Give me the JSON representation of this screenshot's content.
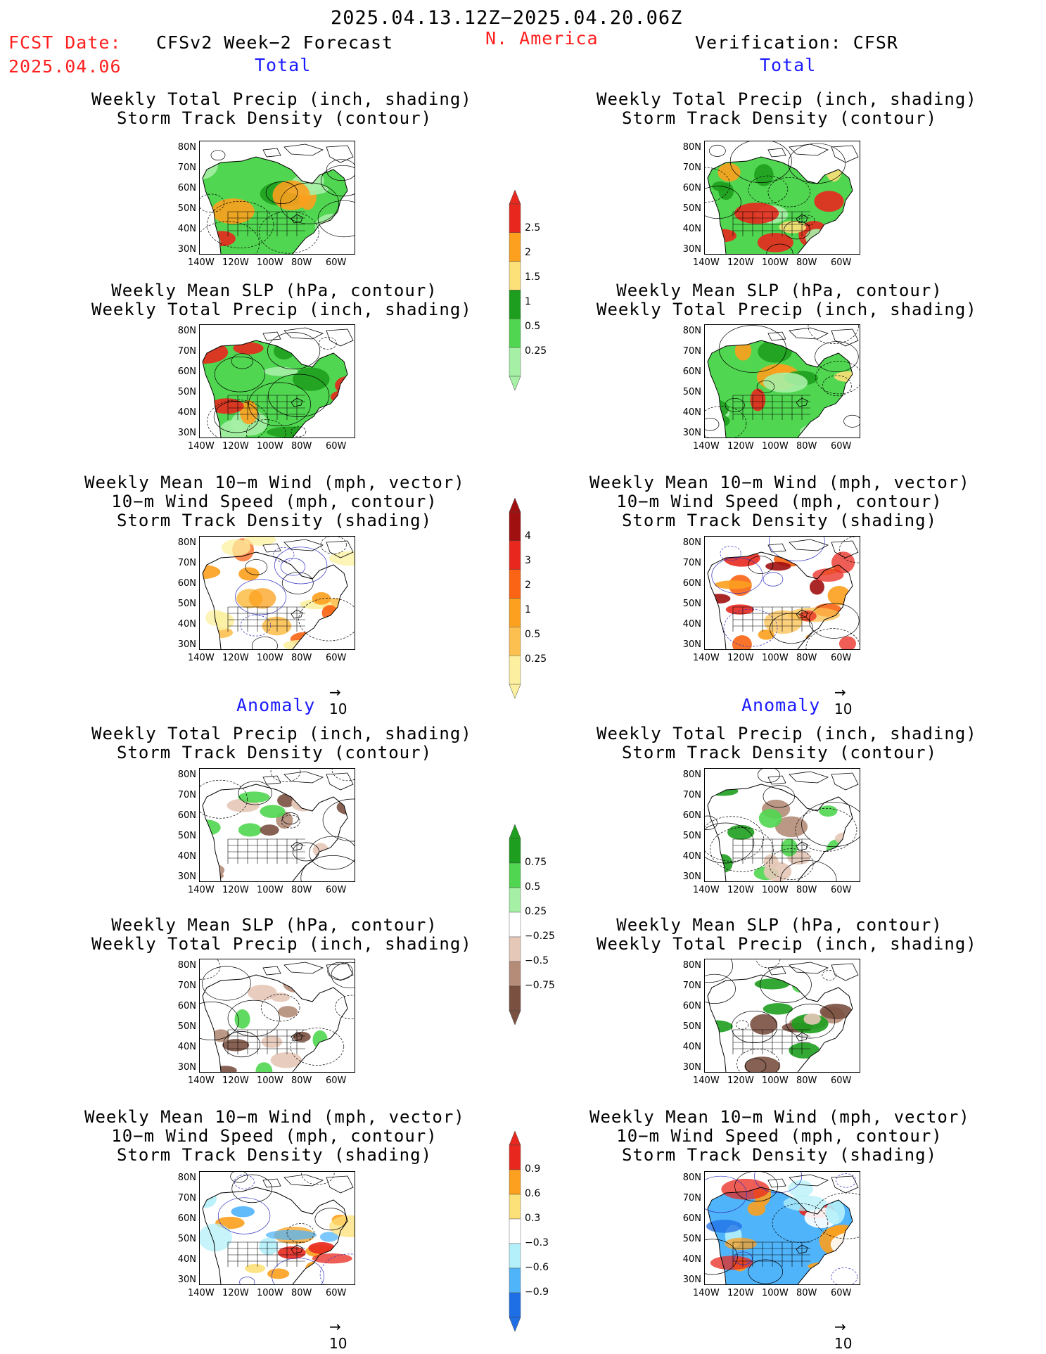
{
  "header": {
    "date_range": "2025.04.13.12Z−2025.04.20.06Z",
    "fcst_label": "FCST Date:",
    "fcst_date": "2025.04.06",
    "model": "CFSv2 Week−2 Forecast",
    "region": "N. America",
    "verification": "Verification: CFSR"
  },
  "sections": {
    "total": "Total",
    "anomaly": "Anomaly"
  },
  "titles": {
    "precip_storm": "Weekly Total Precip (inch, shading)\nStorm Track Density (contour)",
    "slp_precip": "Weekly Mean SLP (hPa, contour)\nWeekly Total Precip (inch, shading)",
    "wind": "Weekly Mean 10−m Wind (mph, vector)\n10−m Wind Speed (mph, contour)\nStorm Track Density (shading)"
  },
  "axes": {
    "lat": [
      "80N",
      "70N",
      "60N",
      "50N",
      "40N",
      "30N"
    ],
    "lon": [
      "140W",
      "120W",
      "100W",
      "80W",
      "60W"
    ]
  },
  "vector_ref": "10",
  "colorbars": {
    "precip_total": {
      "labels": [
        "2.5",
        "2",
        "1.5",
        "1",
        "0.5",
        "0.25"
      ],
      "colors": [
        "#e8281e",
        "#fca01e",
        "#fce078",
        "#1e9e1e",
        "#50d650",
        "#a6f0a6"
      ]
    },
    "storm_total": {
      "labels": [
        "4",
        "3",
        "2",
        "1",
        "0.5",
        "0.25"
      ],
      "colors": [
        "#a01010",
        "#e8281e",
        "#fa6414",
        "#fca01e",
        "#fcc050",
        "#fcf0a0"
      ]
    },
    "precip_anom": {
      "labels": [
        "0.75",
        "0.5",
        "0.25",
        "−0.25",
        "−0.5",
        "−0.75"
      ],
      "colors": [
        "#1e9e1e",
        "#50d650",
        "#a6f0a6",
        "#ffffff",
        "#e6c8b8",
        "#b48c78",
        "#7a5040"
      ]
    },
    "storm_anom": {
      "labels": [
        "0.9",
        "0.6",
        "0.3",
        "−0.3",
        "−0.6",
        "−0.9"
      ],
      "colors": [
        "#e8281e",
        "#fca01e",
        "#fce078",
        "#ffffff",
        "#b4f0fa",
        "#50b4fa",
        "#1e6ee6"
      ]
    }
  }
}
